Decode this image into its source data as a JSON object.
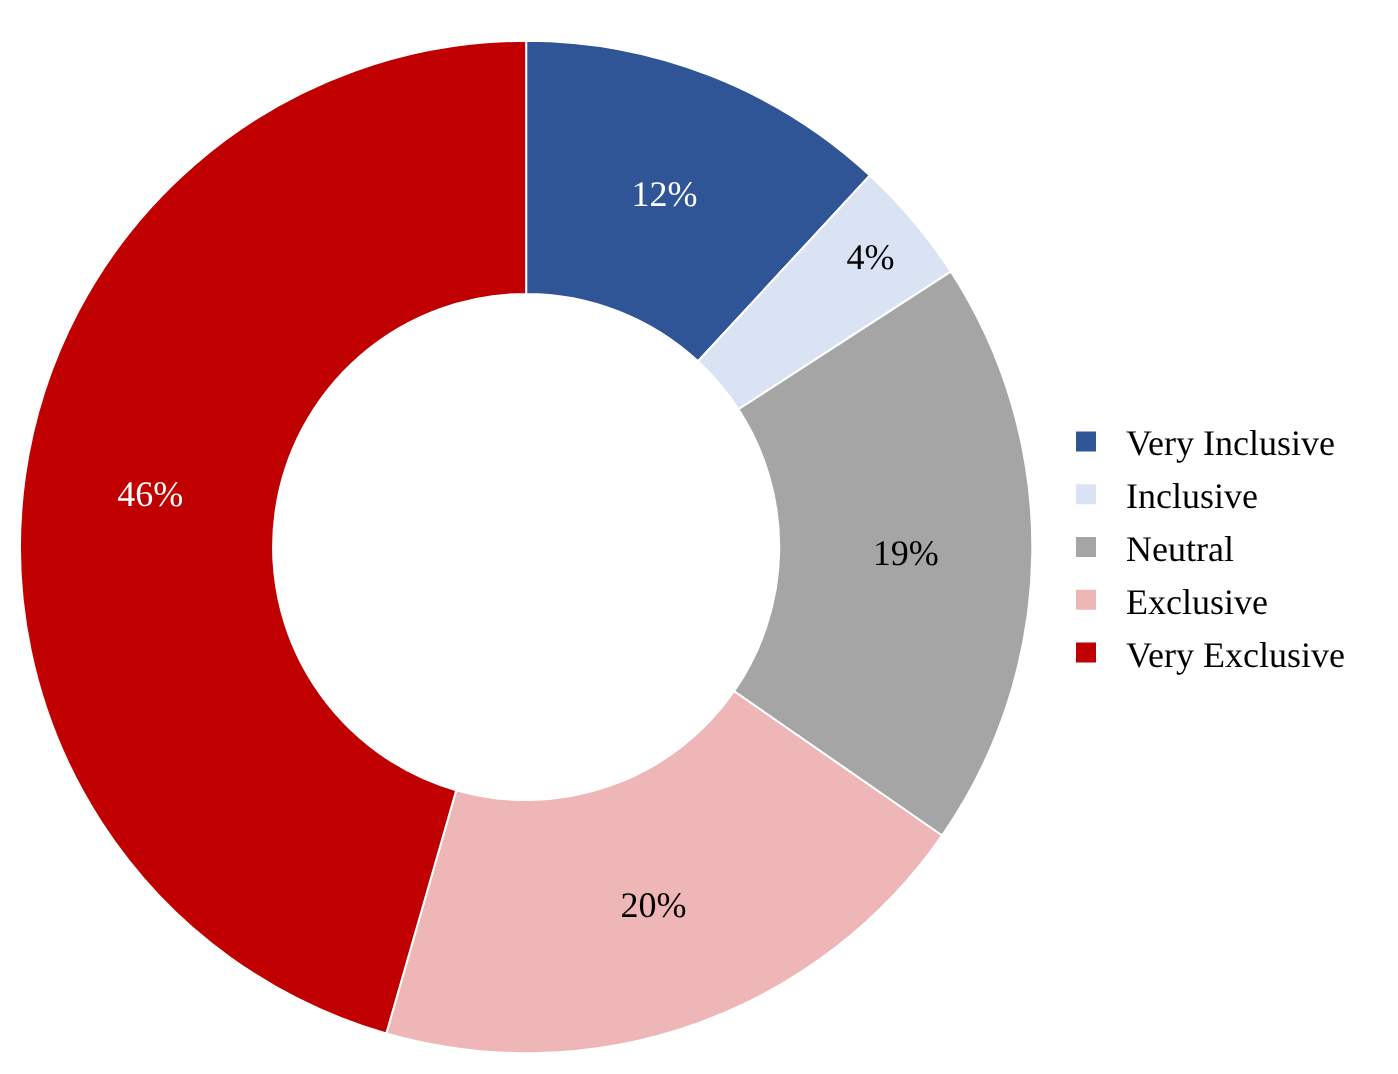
{
  "chart_data": {
    "type": "donut",
    "categories": [
      "Very Inclusive",
      "Inclusive",
      "Neutral",
      "Exclusive",
      "Very Exclusive"
    ],
    "values": [
      12,
      4,
      19,
      20,
      46
    ],
    "value_labels": [
      "12%",
      "4%",
      "19%",
      "20%",
      "46%"
    ],
    "colors": [
      "#2f5597",
      "#dae3f3",
      "#a5a5a5",
      "#eeb6b6",
      "#c00000"
    ],
    "legend": "right"
  }
}
